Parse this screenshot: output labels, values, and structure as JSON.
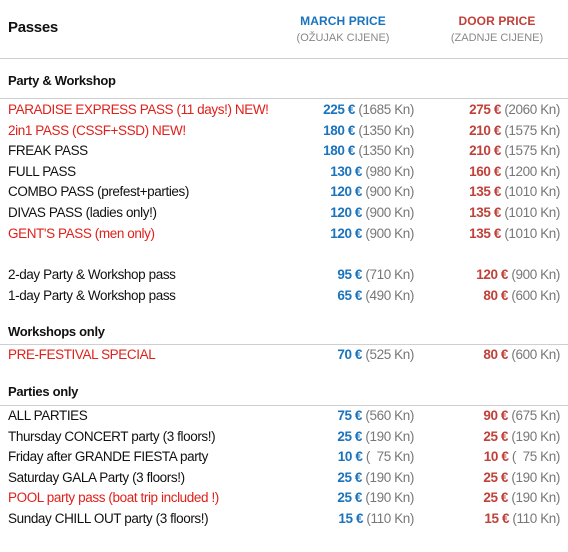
{
  "header": {
    "title": "Passes",
    "march": {
      "label": "MARCH PRICE",
      "sub": "(OŽUJAK CIJENE)"
    },
    "door": {
      "label": "DOOR PRICE",
      "sub": "(ZADNJE CIJENE)"
    }
  },
  "sections": {
    "party_workshop": {
      "title": "Party & Workshop",
      "rows": [
        {
          "name": "PARADISE EXPRESS PASS (11 days!) NEW!",
          "march_eur": "225 €",
          "march_kn": "(1685 Kn)",
          "door_eur": "275 €",
          "door_kn": "(2060 Kn)"
        },
        {
          "name": "2in1 PASS (CSSF+SSD) NEW!",
          "march_eur": "180 €",
          "march_kn": "(1350 Kn)",
          "door_eur": "210 €",
          "door_kn": "(1575 Kn)"
        },
        {
          "name": "FREAK PASS",
          "march_eur": "180 €",
          "march_kn": "(1350 Kn)",
          "door_eur": "210 €",
          "door_kn": "(1575 Kn)"
        },
        {
          "name": "FULL PASS",
          "march_eur": "130 €",
          "march_kn": "(980 Kn)",
          "door_eur": "160 €",
          "door_kn": "(1200 Kn)"
        },
        {
          "name": "COMBO PASS (prefest+parties)",
          "march_eur": "120 €",
          "march_kn": "(900 Kn)",
          "door_eur": "135 €",
          "door_kn": "(1010 Kn)"
        },
        {
          "name": "DIVAS PASS (ladies only!)",
          "march_eur": "120 €",
          "march_kn": "(900 Kn)",
          "door_eur": "135 €",
          "door_kn": "(1010 Kn)"
        },
        {
          "name": "GENT'S PASS (men only)",
          "march_eur": "120 €",
          "march_kn": "(900 Kn)",
          "door_eur": "135 €",
          "door_kn": "(1010 Kn)"
        },
        {
          "name": "2-day Party & Workshop pass",
          "march_eur": "95 €",
          "march_kn": "(710 Kn)",
          "door_eur": "120 €",
          "door_kn": "(900 Kn)"
        },
        {
          "name": "1-day Party & Workshop pass",
          "march_eur": "65 €",
          "march_kn": "(490 Kn)",
          "door_eur": "80 €",
          "door_kn": "(600 Kn)"
        }
      ]
    },
    "workshops_only": {
      "title": "Workshops only",
      "rows": [
        {
          "name": "PRE-FESTIVAL SPECIAL",
          "march_eur": "70 €",
          "march_kn": "(525 Kn)",
          "door_eur": "80 €",
          "door_kn": "(600 Kn)"
        }
      ]
    },
    "parties_only": {
      "title": "Parties only",
      "rows": [
        {
          "name": "ALL PARTIES",
          "march_eur": "75 €",
          "march_kn": "(560 Kn)",
          "door_eur": "90 €",
          "door_kn": "(675 Kn)"
        },
        {
          "name": "Thursday CONCERT party (3 floors!)",
          "march_eur": "25 €",
          "march_kn": "(190 Kn)",
          "door_eur": "25 €",
          "door_kn": "(190 Kn)"
        },
        {
          "name": "Friday after GRANDE FIESTA party",
          "march_eur": "10 €",
          "march_kn": "(  75 Kn)",
          "door_eur": "10 €",
          "door_kn": "(  75 Kn)"
        },
        {
          "name": "Saturday GALA Party (3 floors!)",
          "march_eur": "25 €",
          "march_kn": "(190 Kn)",
          "door_eur": "25 €",
          "door_kn": "(190 Kn)"
        },
        {
          "name": "POOL party pass (boat trip included !)",
          "march_eur": "25 €",
          "march_kn": "(190 Kn)",
          "door_eur": "25 €",
          "door_kn": "(190 Kn)"
        },
        {
          "name": "Sunday CHILL OUT party (3 floors!)",
          "march_eur": "15 €",
          "march_kn": "(110 Kn)",
          "door_eur": "15 €",
          "door_kn": "(110 Kn)"
        }
      ]
    }
  },
  "colors": {
    "march": "#1a73bd",
    "door": "#c0413a",
    "highlight": "#e0201b"
  }
}
